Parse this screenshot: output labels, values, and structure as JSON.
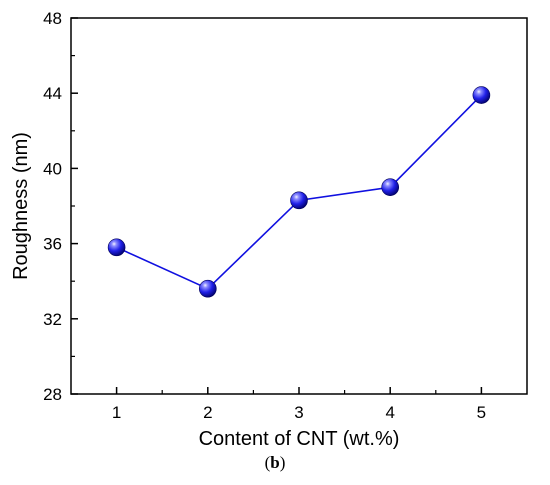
{
  "chart_data": {
    "type": "line",
    "title": "",
    "xlabel": "Content of CNT (wt.%)",
    "ylabel": "Roughness (nm)",
    "x": [
      1,
      2,
      3,
      4,
      5
    ],
    "series": [
      {
        "name": "",
        "values": [
          35.8,
          33.6,
          38.3,
          39.0,
          43.9
        ],
        "color": "#1010e0"
      }
    ],
    "xlim": [
      0.5,
      5.5
    ],
    "ylim": [
      28,
      48
    ],
    "xticks": [
      1,
      2,
      3,
      4,
      5
    ],
    "yticks": [
      28,
      32,
      36,
      40,
      44,
      48
    ],
    "xtick_labels": [
      "1",
      "2",
      "3",
      "4",
      "5"
    ],
    "ytick_labels": [
      "28",
      "32",
      "36",
      "40",
      "44",
      "48"
    ],
    "grid": false,
    "legend": "none",
    "marker": "sphere"
  },
  "caption": {
    "open": "(",
    "letter": "b",
    "close": ")"
  }
}
